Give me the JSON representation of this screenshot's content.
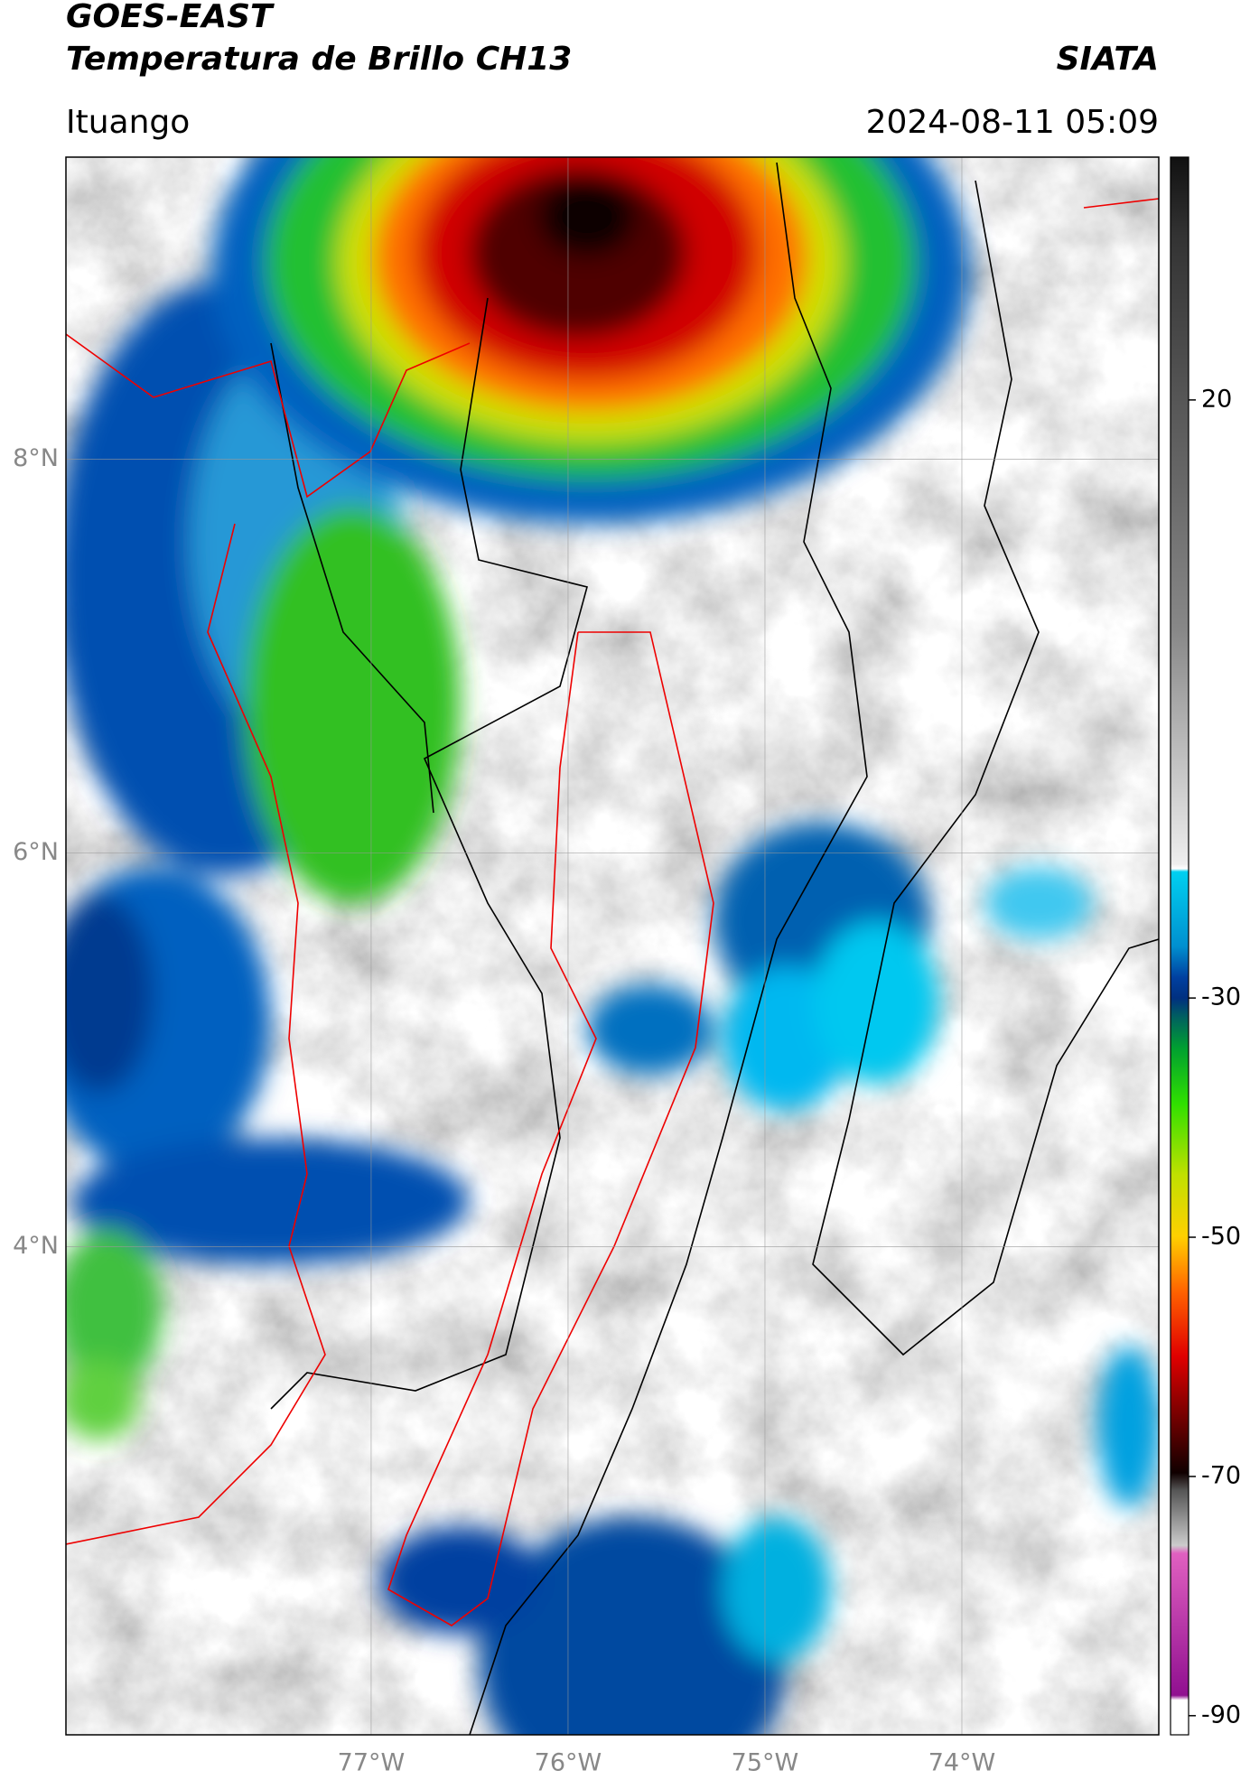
{
  "header": {
    "title": "GOES-EAST",
    "subtitle": "Temperatura de Brillo CH13",
    "agency": "SIATA",
    "location": "Ituango",
    "timestamp": "2024-08-11 05:09"
  },
  "map": {
    "xlim": [
      -78.55,
      -73.0
    ],
    "ylim": [
      1.52,
      9.535
    ],
    "xticks": [
      {
        "value": -77,
        "label": "77°W"
      },
      {
        "value": -76,
        "label": "76°W"
      },
      {
        "value": -75,
        "label": "75°W"
      },
      {
        "value": -74,
        "label": "74°W"
      }
    ],
    "yticks": [
      {
        "value": 4,
        "label": "4°N"
      },
      {
        "value": 6,
        "label": "6°N"
      },
      {
        "value": 8,
        "label": "8°N"
      }
    ],
    "grid": true
  },
  "colorbar": {
    "lim": [
      -91.6,
      40.3
    ],
    "ticks": [
      20,
      -30,
      -50,
      -70,
      -90
    ]
  }
}
